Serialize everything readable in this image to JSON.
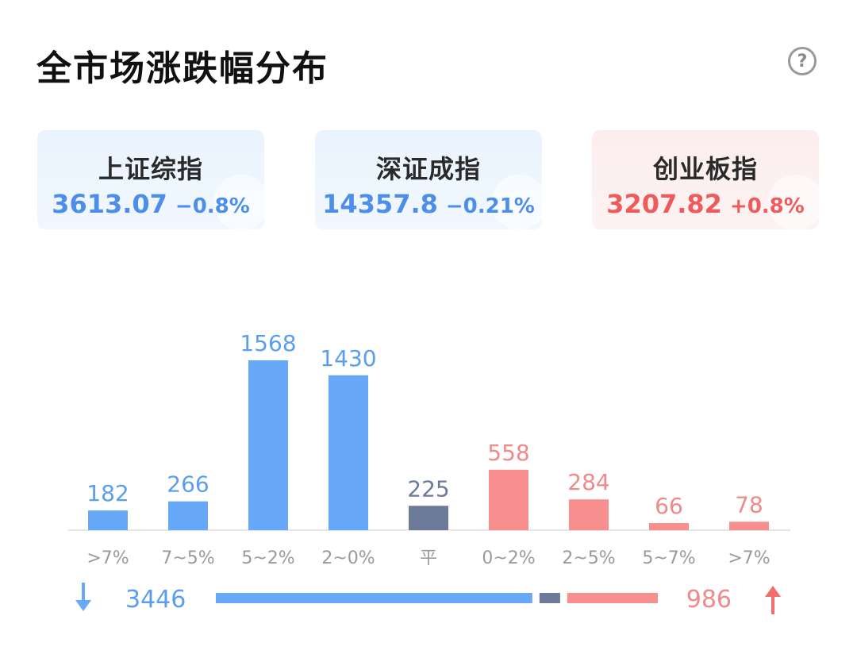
{
  "header": {
    "title": "全市场涨跌幅分布",
    "help_icon": "?"
  },
  "indices": [
    {
      "name": "上证综指",
      "value": "3613.07",
      "change": "−0.8%",
      "trend": "down"
    },
    {
      "name": "深证成指",
      "value": "14357.8",
      "change": "−0.21%",
      "trend": "down"
    },
    {
      "name": "创业板指",
      "value": "3207.82",
      "change": "+0.8%",
      "trend": "up"
    }
  ],
  "colors": {
    "down": "#68a8f8",
    "flat": "#6c7b9a",
    "up": "#f88f8f",
    "down_text": "#5a9ef0",
    "up_text": "#f08a8a"
  },
  "chart_data": {
    "type": "bar",
    "categories": [
      ">7%",
      "7~5%",
      "5~2%",
      "2~0%",
      "平",
      "0~2%",
      "2~5%",
      "5~7%",
      ">7%"
    ],
    "values": [
      182,
      266,
      1568,
      1430,
      225,
      558,
      284,
      66,
      78
    ],
    "groups": [
      "down",
      "down",
      "down",
      "down",
      "flat",
      "up",
      "up",
      "up",
      "up"
    ],
    "summary": {
      "down_total": "3446",
      "up_total": "986"
    }
  }
}
